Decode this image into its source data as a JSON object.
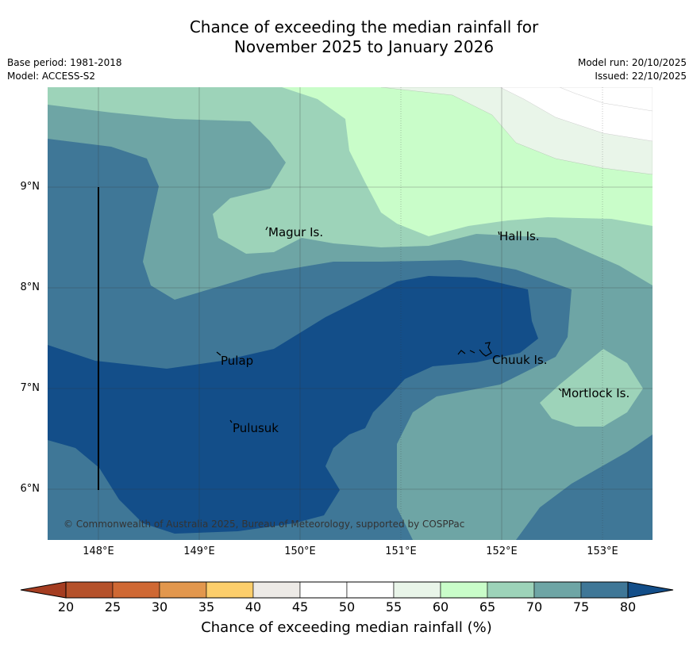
{
  "title": {
    "line1": "Chance of exceeding the median rainfall for",
    "line2": "November 2025 to January 2026"
  },
  "meta_left": {
    "base_period": "Base period: 1981-2018",
    "model": "Model: ACCESS-S2"
  },
  "meta_right": {
    "model_run": "Model run: 20/10/2025",
    "issued": "Issued: 22/10/2025"
  },
  "map": {
    "lat_labels": [
      "9°N",
      "8°N",
      "7°N",
      "6°N"
    ],
    "lon_labels": [
      "148°E",
      "149°E",
      "150°E",
      "151°E",
      "152°E",
      "153°E"
    ],
    "places": [
      {
        "name": "Magur Is."
      },
      {
        "name": "Hall Is."
      },
      {
        "name": "Pulap"
      },
      {
        "name": "Chuuk Is."
      },
      {
        "name": "Mortlock Is."
      },
      {
        "name": "Pulusuk"
      }
    ],
    "copyright": "© Commonwealth of Australia 2025, Bureau of Meteorology, supported by COSPPac"
  },
  "colorbar": {
    "title": "Chance of exceeding median rainfall (%)",
    "ticks": [
      "20",
      "25",
      "30",
      "35",
      "40",
      "45",
      "50",
      "55",
      "60",
      "65",
      "70",
      "75",
      "80"
    ],
    "colors": [
      "#a53d21",
      "#b5512a",
      "#cf6833",
      "#e2974d",
      "#fcce6b",
      "#edeae6",
      "#ffffff",
      "#ffffff",
      "#e9f5e9",
      "#c9fdc9",
      "#9dd3b9",
      "#6ea5a5",
      "#3f7797",
      "#134e89"
    ]
  }
}
